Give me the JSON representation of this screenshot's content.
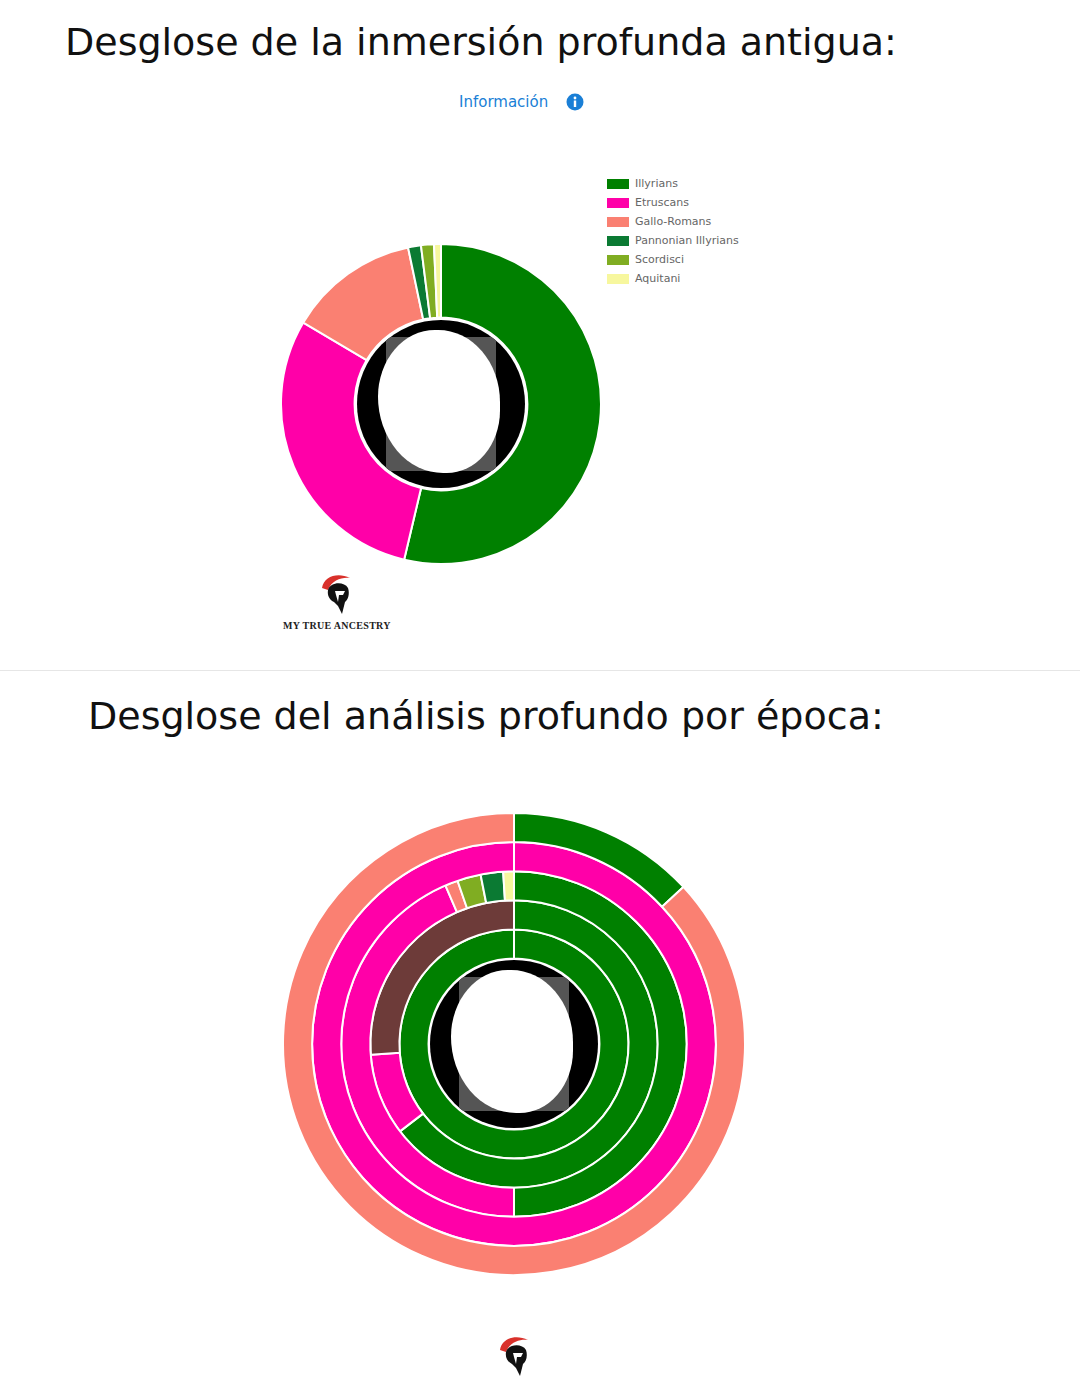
{
  "chart_data": [
    {
      "type": "doughnut",
      "title": "Desglose de la inmersión profunda antigua:",
      "subtitle": "Información",
      "categories": [
        "Illyrians",
        "Etruscans",
        "Gallo-Romans",
        "Pannonian Illyrians",
        "Scordisci",
        "Aquitani"
      ],
      "values": [
        53.7,
        29.8,
        13.2,
        1.3,
        1.3,
        0.7
      ],
      "colors": [
        "#008000",
        "#ff00a8",
        "#fa8072",
        "#0b7a33",
        "#80ad22",
        "#f7f79e"
      ],
      "legend": "right",
      "annotations": [
        "MY TRUE ANCESTRY"
      ]
    },
    {
      "type": "doughnut",
      "title": "Desglose del análisis profundo por época:",
      "categories": [
        "Illyrians",
        "Etruscans",
        "Gallo-Romans",
        "Scordisci",
        "Pannonian Illyrians",
        "Aquitani",
        null
      ],
      "colors": [
        "#008000",
        "#ff00a8",
        "#fa8072",
        "#80ad22",
        "#0b7a33",
        "#f7f79e",
        "#6d3b39"
      ],
      "series": [
        {
          "values": [
            13.1,
            0,
            86.9,
            0,
            0,
            0,
            0
          ]
        },
        {
          "values": [
            0,
            100,
            0,
            0,
            0,
            0,
            0
          ]
        },
        {
          "values": [
            50,
            43.5,
            1.2,
            2.2,
            2.1,
            1.0,
            0
          ]
        },
        {
          "values": [
            64.6,
            9.2,
            0,
            0,
            0,
            0,
            26.2
          ]
        },
        {
          "values": [
            100,
            0,
            0,
            0,
            0,
            0,
            0
          ]
        }
      ]
    }
  ]
}
